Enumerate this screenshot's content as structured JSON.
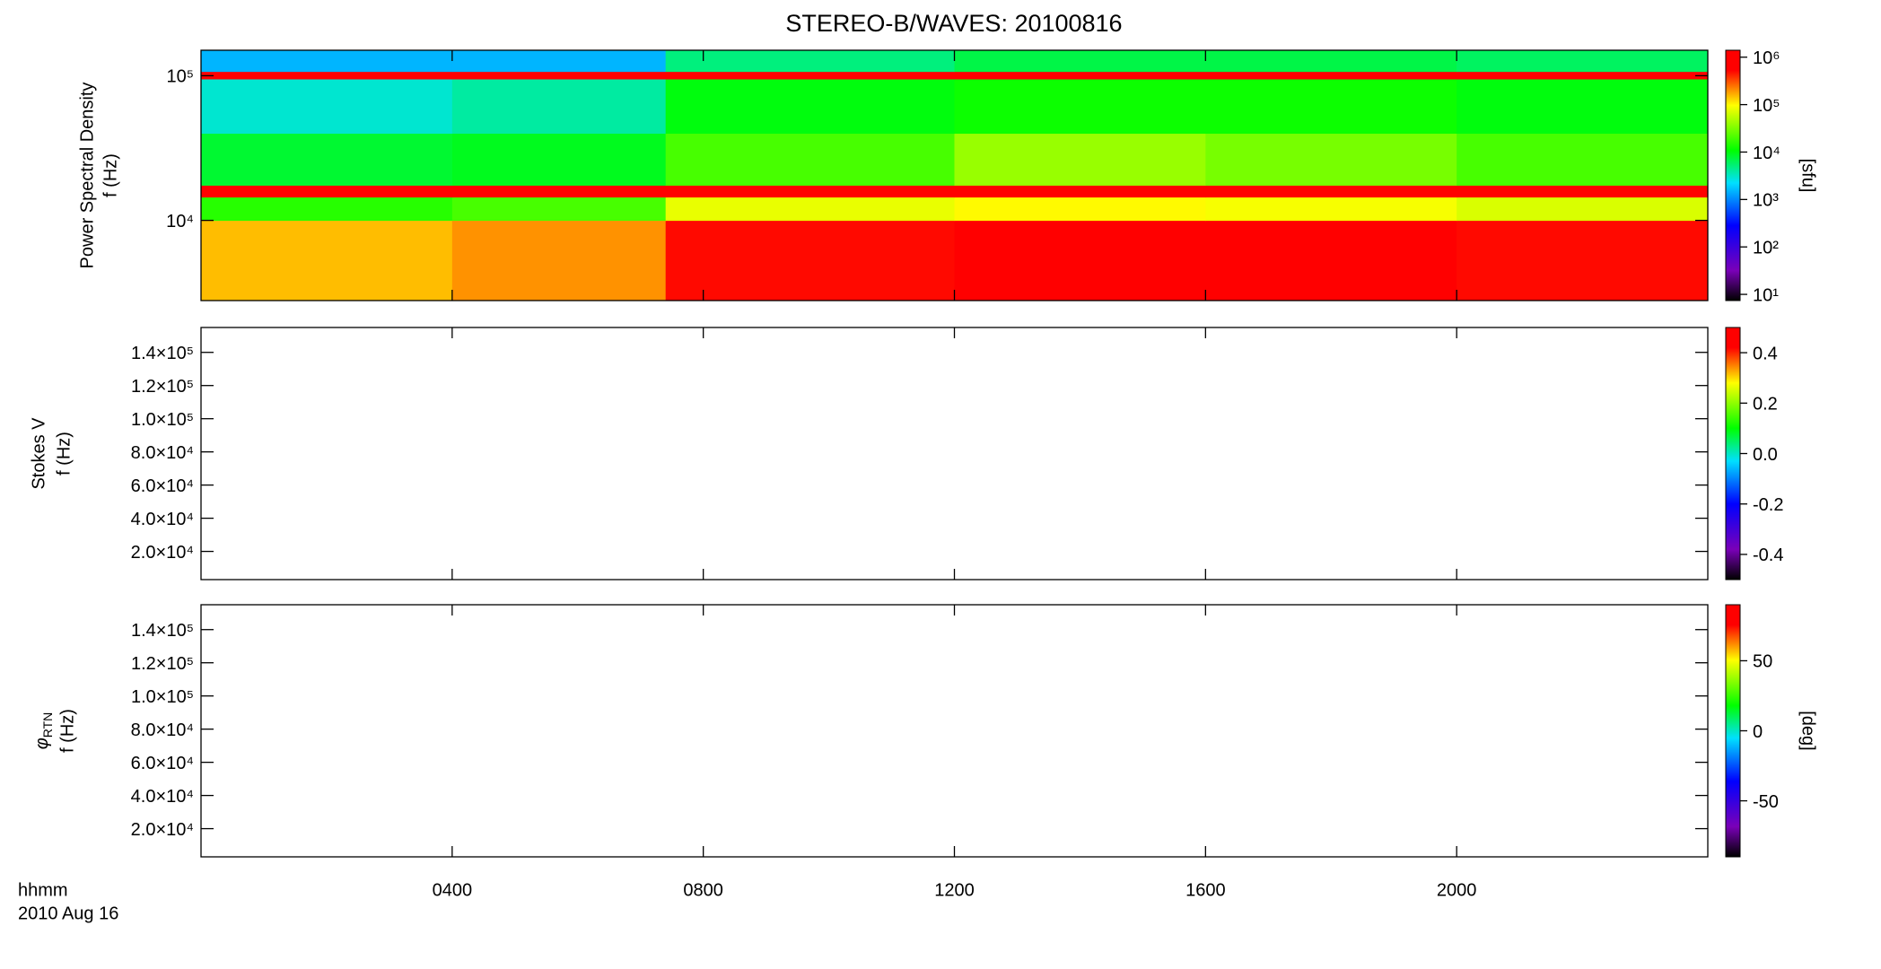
{
  "chart_data": {
    "title": "STEREO-B/WAVES: 20100816",
    "xlim": [
      0,
      24
    ],
    "xticks": [
      {
        "value": 4,
        "label": "0400"
      },
      {
        "value": 8,
        "label": "0800"
      },
      {
        "value": 12,
        "label": "1200"
      },
      {
        "value": 16,
        "label": "1600"
      },
      {
        "value": 20,
        "label": "2000"
      }
    ],
    "xlabel": [
      "hhmm",
      "2010 Aug 16"
    ],
    "colormap": [
      {
        "at": 0,
        "color": "#000000"
      },
      {
        "at": 0.12,
        "color": "#7a00b8"
      },
      {
        "at": 0.3,
        "color": "#0000ff"
      },
      {
        "at": 0.47,
        "color": "#00e0ff"
      },
      {
        "at": 0.6,
        "color": "#00ff00"
      },
      {
        "at": 0.78,
        "color": "#ffff00"
      },
      {
        "at": 0.92,
        "color": "#ff0000"
      },
      {
        "at": 1,
        "color": "#ff0000"
      }
    ],
    "panels": [
      {
        "type": "heatmap",
        "ylabel": [
          "Power Spectral Density",
          "f (Hz)"
        ],
        "ylog": true,
        "ylim": [
          2790,
          150000
        ],
        "yticks": [
          {
            "value": 10000,
            "label": "10⁴"
          },
          {
            "value": 100000,
            "label": "10⁵"
          }
        ],
        "clog": true,
        "clim": [
          7.4,
          1400000
        ],
        "clabel": "[sfu]",
        "cticks": [
          {
            "value": 10,
            "label": "10¹"
          },
          {
            "value": 100,
            "label": "10²"
          },
          {
            "value": 1000,
            "label": "10³"
          },
          {
            "value": 10000,
            "label": "10⁴"
          },
          {
            "value": 100000,
            "label": "10⁵"
          },
          {
            "value": 1000000,
            "label": "10⁶"
          }
        ],
        "xbins": [
          0,
          4,
          7.4,
          12,
          16,
          20,
          24
        ],
        "ybins": [
          2790,
          10000,
          14500,
          17500,
          40000,
          95000,
          107000,
          150000
        ],
        "z": [
          [
            150000,
            200000,
            500000,
            700000,
            600000,
            500000
          ],
          [
            15000,
            20000,
            80000,
            100000,
            90000,
            70000
          ],
          [
            1000000,
            1000000,
            1000000,
            1000000,
            1000000,
            1000000
          ],
          [
            8000,
            9000,
            20000,
            40000,
            30000,
            20000
          ],
          [
            3000,
            4000,
            10000,
            12000,
            12000,
            10000
          ],
          [
            1000000,
            1000000,
            1000000,
            1000000,
            1000000,
            1000000
          ],
          [
            1500,
            1500,
            5000,
            7000,
            7000,
            6000
          ]
        ]
      },
      {
        "type": "heatmap",
        "ylabel": [
          "Stokes V",
          "f (Hz)"
        ],
        "ylog": false,
        "ylim": [
          3000,
          155000
        ],
        "yticks": [
          {
            "value": 20000,
            "label": "2.0×10⁴"
          },
          {
            "value": 40000,
            "label": "4.0×10⁴"
          },
          {
            "value": 60000,
            "label": "6.0×10⁴"
          },
          {
            "value": 80000,
            "label": "8.0×10⁴"
          },
          {
            "value": 100000,
            "label": "1.0×10⁵"
          },
          {
            "value": 120000,
            "label": "1.2×10⁵"
          },
          {
            "value": 140000,
            "label": "1.4×10⁵"
          }
        ],
        "clog": false,
        "clim": [
          -0.5,
          0.5
        ],
        "cticks": [
          {
            "value": -0.4,
            "label": "-0.4"
          },
          {
            "value": -0.2,
            "label": "-0.2"
          },
          {
            "value": 0,
            "label": "0.0"
          },
          {
            "value": 0.2,
            "label": "0.2"
          },
          {
            "value": 0.4,
            "label": "0.4"
          }
        ]
      },
      {
        "type": "heatmap",
        "ylabel": [
          {
            "symbol": "φ",
            "subscript": "RTN"
          },
          "f (Hz)"
        ],
        "ylog": false,
        "ylim": [
          3000,
          155000
        ],
        "yticks": [
          {
            "value": 20000,
            "label": "2.0×10⁴"
          },
          {
            "value": 40000,
            "label": "4.0×10⁴"
          },
          {
            "value": 60000,
            "label": "6.0×10⁴"
          },
          {
            "value": 80000,
            "label": "8.0×10⁴"
          },
          {
            "value": 100000,
            "label": "1.0×10⁵"
          },
          {
            "value": 120000,
            "label": "1.2×10⁵"
          },
          {
            "value": 140000,
            "label": "1.4×10⁵"
          }
        ],
        "clog": false,
        "clim": [
          -90,
          90
        ],
        "clabel": "[deg]",
        "cticks": [
          -50,
          0,
          50
        ]
      }
    ]
  }
}
